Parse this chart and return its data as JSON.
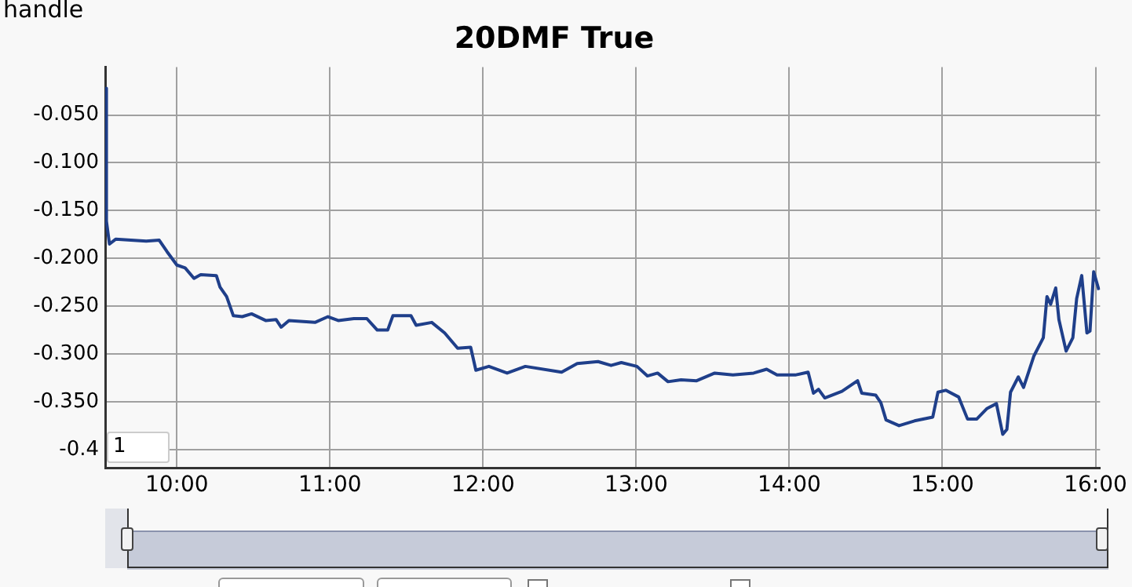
{
  "chart_data": {
    "type": "line",
    "title": "20DMF True",
    "annotations": [
      "handle",
      "1"
    ],
    "x": [
      9.535,
      9.54,
      9.56,
      9.6,
      9.8,
      9.885,
      9.936,
      10.0,
      10.054,
      10.112,
      10.156,
      10.258,
      10.282,
      10.325,
      10.369,
      10.427,
      10.488,
      10.58,
      10.648,
      10.681,
      10.732,
      10.902,
      10.987,
      11.054,
      11.156,
      11.241,
      11.309,
      11.377,
      11.411,
      11.529,
      11.563,
      11.665,
      11.749,
      11.834,
      11.919,
      11.953,
      12.038,
      12.157,
      12.276,
      12.513,
      12.615,
      12.751,
      12.836,
      12.903,
      13.005,
      13.073,
      13.14,
      13.208,
      13.293,
      13.395,
      13.513,
      13.632,
      13.767,
      13.852,
      13.92,
      14.039,
      14.123,
      14.158,
      14.191,
      14.232,
      14.344,
      14.446,
      14.473,
      14.564,
      14.598,
      14.632,
      14.717,
      14.818,
      14.937,
      14.971,
      15.022,
      15.106,
      15.164,
      15.225,
      15.292,
      15.353,
      15.394,
      15.421,
      15.445,
      15.496,
      15.53,
      15.598,
      15.659,
      15.683,
      15.707,
      15.74,
      15.761,
      15.808,
      15.852,
      15.877,
      15.91,
      15.944,
      15.964,
      15.988,
      16.022
    ],
    "series": [
      {
        "color": "#1f3f8a",
        "values": [
          -0.022,
          -0.161,
          -0.185,
          -0.18,
          -0.182,
          -0.181,
          -0.193,
          -0.207,
          -0.21,
          -0.221,
          -0.217,
          -0.218,
          -0.23,
          -0.24,
          -0.26,
          -0.261,
          -0.258,
          -0.265,
          -0.264,
          -0.272,
          -0.265,
          -0.267,
          -0.261,
          -0.265,
          -0.263,
          -0.263,
          -0.275,
          -0.275,
          -0.26,
          -0.26,
          -0.27,
          -0.267,
          -0.278,
          -0.294,
          -0.293,
          -0.317,
          -0.313,
          -0.32,
          -0.313,
          -0.319,
          -0.31,
          -0.308,
          -0.312,
          -0.309,
          -0.313,
          -0.323,
          -0.32,
          -0.329,
          -0.327,
          -0.328,
          -0.32,
          -0.322,
          -0.32,
          -0.316,
          -0.322,
          -0.322,
          -0.319,
          -0.341,
          -0.337,
          -0.346,
          -0.339,
          -0.328,
          -0.341,
          -0.343,
          -0.351,
          -0.369,
          -0.375,
          -0.37,
          -0.366,
          -0.34,
          -0.338,
          -0.345,
          -0.368,
          -0.368,
          -0.357,
          -0.352,
          -0.384,
          -0.379,
          -0.34,
          -0.324,
          -0.335,
          -0.302,
          -0.283,
          -0.24,
          -0.248,
          -0.231,
          -0.264,
          -0.297,
          -0.283,
          -0.242,
          -0.218,
          -0.278,
          -0.276,
          -0.214,
          -0.233
        ]
      }
    ],
    "xlim": [
      9.532,
      16.03
    ],
    "ylim": [
      -0.419,
      0
    ],
    "xticks": [
      {
        "value": 10,
        "label": "10:00"
      },
      {
        "value": 11,
        "label": "11:00"
      },
      {
        "value": 12,
        "label": "12:00"
      },
      {
        "value": 13,
        "label": "13:00"
      },
      {
        "value": 14,
        "label": "14:00"
      },
      {
        "value": 15,
        "label": "15:00"
      },
      {
        "value": 16,
        "label": "16:00"
      }
    ],
    "yticks": [
      {
        "value": -0.05,
        "label": "-0.050"
      },
      {
        "value": -0.1,
        "label": "-0.100"
      },
      {
        "value": -0.15,
        "label": "-0.150"
      },
      {
        "value": -0.2,
        "label": "-0.200"
      },
      {
        "value": -0.25,
        "label": "-0.250"
      },
      {
        "value": -0.3,
        "label": "-0.300"
      },
      {
        "value": -0.35,
        "label": "-0.350"
      },
      {
        "value": -0.4,
        "label": "-0.4"
      }
    ],
    "grid": true,
    "legend": false,
    "marker": "none",
    "line_style": "solid"
  }
}
